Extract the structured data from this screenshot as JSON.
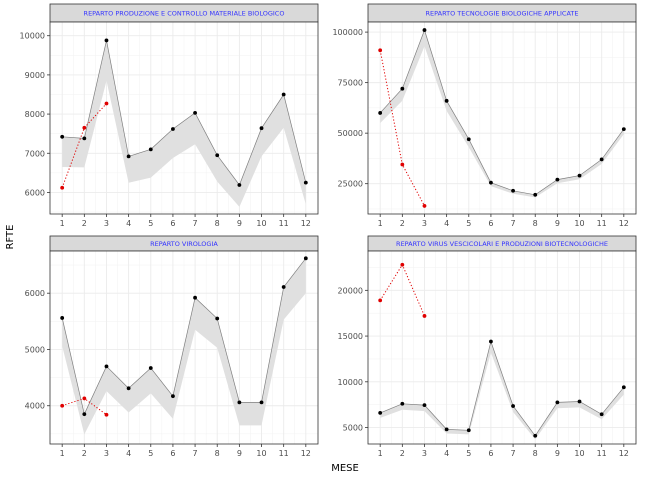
{
  "chart_data": {
    "type": "line",
    "xlabel": "MESE",
    "ylabel": "RFTE",
    "colors": {
      "band": "#e0e0e0",
      "line": "#7f7f7f",
      "actual_points": "#000000",
      "new_series": "#e00000",
      "strip_bg": "#d9d9d9",
      "strip_text": "#3333ff",
      "grid": "#ebebeb"
    },
    "panels": [
      {
        "title": "REPARTO PRODUZIONE E CONTROLLO MATERIALE BIOLOGICO",
        "x": [
          1,
          2,
          3,
          4,
          5,
          6,
          7,
          8,
          9,
          10,
          11,
          12
        ],
        "ylim": [
          5450,
          10350
        ],
        "yticks": [
          6000,
          7000,
          8000,
          9000,
          10000
        ],
        "yticklabels": [
          "6000",
          "7000",
          "8000",
          "9000",
          "10000"
        ],
        "line": [
          7420,
          7380,
          9880,
          6920,
          7100,
          7620,
          8030,
          6950,
          6190,
          7640,
          8500,
          6250
        ],
        "band_low": [
          6650,
          6640,
          8850,
          6250,
          6380,
          6880,
          7230,
          6280,
          5630,
          6920,
          7650,
          5700
        ],
        "band_high": [
          7420,
          7380,
          9880,
          6920,
          7100,
          7620,
          8030,
          6950,
          6190,
          7640,
          8500,
          6250
        ],
        "red_x": [
          1,
          2,
          3
        ],
        "red_y": [
          6120,
          7650,
          8270
        ]
      },
      {
        "title": "REPARTO TECNOLOGIE BIOLOGICHE APPLICATE",
        "x": [
          1,
          2,
          3,
          4,
          5,
          6,
          7,
          8,
          9,
          10,
          11,
          12
        ],
        "ylim": [
          10000,
          105000
        ],
        "yticks": [
          25000,
          50000,
          75000,
          100000
        ],
        "yticklabels": [
          "25000",
          "50000",
          "75000",
          "100000"
        ],
        "line": [
          60000,
          72000,
          101000,
          66000,
          47000,
          25500,
          21500,
          19500,
          27000,
          29000,
          37000,
          52000
        ],
        "band_low": [
          55000,
          66000,
          93000,
          61000,
          43000,
          23800,
          20000,
          18200,
          25200,
          27200,
          34800,
          49500
        ],
        "band_high": [
          60000,
          72000,
          101000,
          66000,
          47000,
          25500,
          21500,
          19500,
          27000,
          29000,
          37000,
          52000
        ],
        "red_x": [
          1,
          2,
          3
        ],
        "red_y": [
          91000,
          34500,
          14000
        ]
      },
      {
        "title": "REPARTO VIROLOGIA",
        "x": [
          1,
          2,
          3,
          4,
          5,
          6,
          7,
          8,
          9,
          10,
          11,
          12
        ],
        "ylim": [
          3320,
          6750
        ],
        "yticks": [
          4000,
          5000,
          6000
        ],
        "yticklabels": [
          "4000",
          "5000",
          "6000"
        ],
        "line": [
          5560,
          3850,
          4700,
          4310,
          4670,
          4170,
          5920,
          5550,
          4060,
          4060,
          6110,
          6620
        ],
        "band_low": [
          5060,
          3490,
          4260,
          3880,
          4220,
          3770,
          5350,
          5030,
          3650,
          3650,
          5530,
          6000
        ],
        "band_high": [
          5560,
          3850,
          4700,
          4310,
          4670,
          4170,
          5920,
          5550,
          4060,
          4060,
          6110,
          6620
        ],
        "red_x": [
          1,
          2,
          3
        ],
        "red_y": [
          4000,
          4130,
          3840
        ]
      },
      {
        "title": "REPARTO VIRUS VESCICOLARI E PRODUZIONI BIOTECNOLOGICHE",
        "x": [
          1,
          2,
          3,
          4,
          5,
          6,
          7,
          8,
          9,
          10,
          11,
          12
        ],
        "ylim": [
          3200,
          24300
        ],
        "yticks": [
          5000,
          10000,
          15000,
          20000
        ],
        "yticklabels": [
          "5000",
          "10000",
          "15000",
          "20000"
        ],
        "line": [
          6600,
          7600,
          7450,
          4800,
          4700,
          14400,
          7350,
          4100,
          7750,
          7850,
          6450,
          9400
        ],
        "band_low": [
          6050,
          6950,
          6800,
          4350,
          4250,
          13200,
          6700,
          3700,
          7100,
          7200,
          5900,
          8600
        ],
        "band_high": [
          6600,
          7600,
          7450,
          4800,
          4700,
          14400,
          7350,
          4100,
          7750,
          7850,
          6450,
          9400
        ],
        "red_x": [
          1,
          2,
          3
        ],
        "red_y": [
          18900,
          22800,
          17200
        ]
      }
    ]
  }
}
